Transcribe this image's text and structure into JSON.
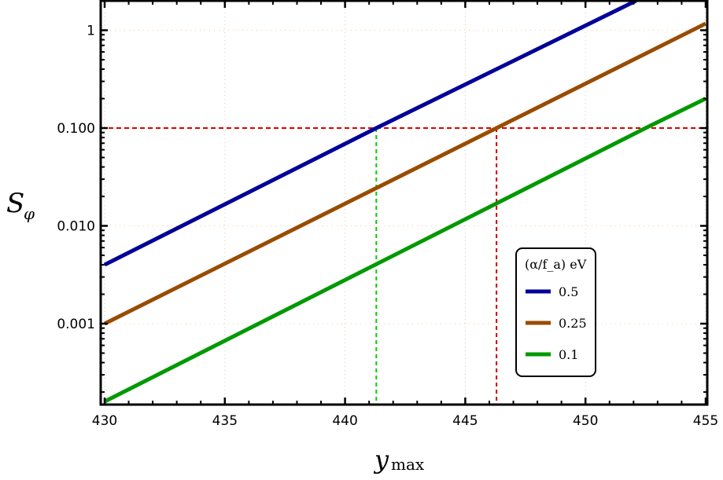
{
  "chart_data": {
    "type": "line",
    "xlabel": "y_max",
    "ylabel": "S_φ",
    "xlim": [
      430,
      455
    ],
    "ylim": [
      0.00015,
      2.0
    ],
    "yscale": "log",
    "grid": true,
    "x_ticks": [
      "430",
      "435",
      "440",
      "445",
      "450",
      "455"
    ],
    "y_ticks": [
      {
        "value": 1,
        "label": "1"
      },
      {
        "value": 0.1,
        "label": "0.100"
      },
      {
        "value": 0.01,
        "label": "0.010"
      },
      {
        "value": 0.001,
        "label": "0.001"
      }
    ],
    "legend": {
      "title": "(α/f_a) eV",
      "placement": "lower-right"
    },
    "series": [
      {
        "name": "0.5",
        "color": "#000099",
        "x": [
          430,
          441.3,
          452.1
        ],
        "y": [
          0.004,
          0.1,
          2.0
        ]
      },
      {
        "name": "0.25",
        "color": "#994c00",
        "x": [
          430,
          446.3,
          455
        ],
        "y": [
          0.001,
          0.1,
          1.17
        ]
      },
      {
        "name": "0.1",
        "color": "#009900",
        "x": [
          430,
          452.5,
          455
        ],
        "y": [
          0.00016,
          0.1,
          0.2
        ]
      }
    ],
    "reference_lines": [
      {
        "type": "horizontal",
        "y": 0.1,
        "color": "#dd0000",
        "style": "dashed"
      },
      {
        "type": "vertical",
        "x": 441.3,
        "color": "#00cc00",
        "style": "dashed"
      },
      {
        "type": "vertical",
        "x": 446.3,
        "color": "#cc0000",
        "style": "dashed"
      }
    ]
  }
}
